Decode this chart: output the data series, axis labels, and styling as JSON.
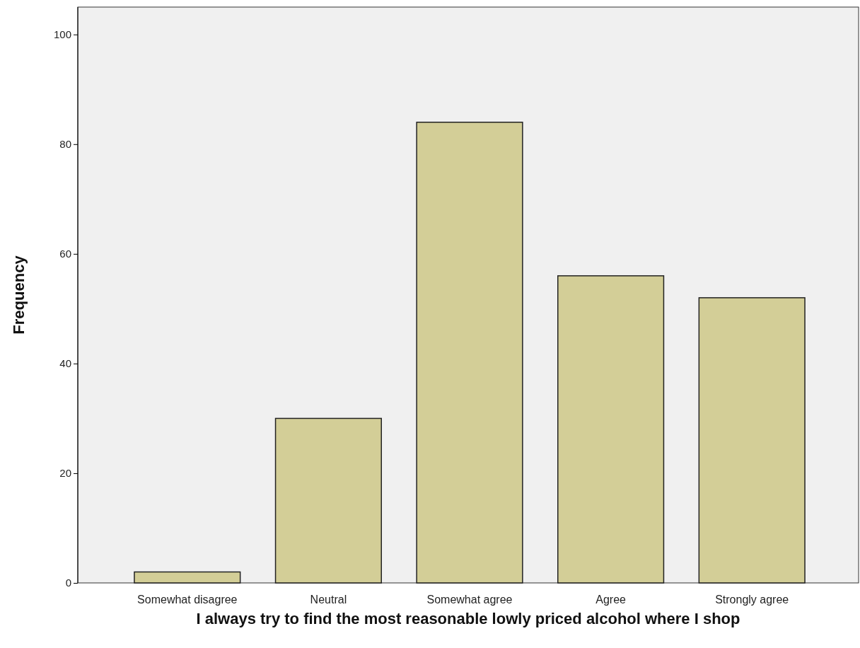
{
  "chart_data": {
    "type": "bar",
    "xlabel": "I always try to find the most reasonable lowly priced alcohol where I shop",
    "ylabel": "Frequency",
    "categories": [
      "Somewhat disagree",
      "Neutral",
      "Somewhat agree",
      "Agree",
      "Strongly agree"
    ],
    "values": [
      2,
      30,
      84,
      56,
      52
    ],
    "color": "#d3ce97",
    "ylim": [
      0,
      105
    ],
    "yticks": [
      0,
      20,
      40,
      60,
      80,
      100
    ],
    "grid": false
  }
}
